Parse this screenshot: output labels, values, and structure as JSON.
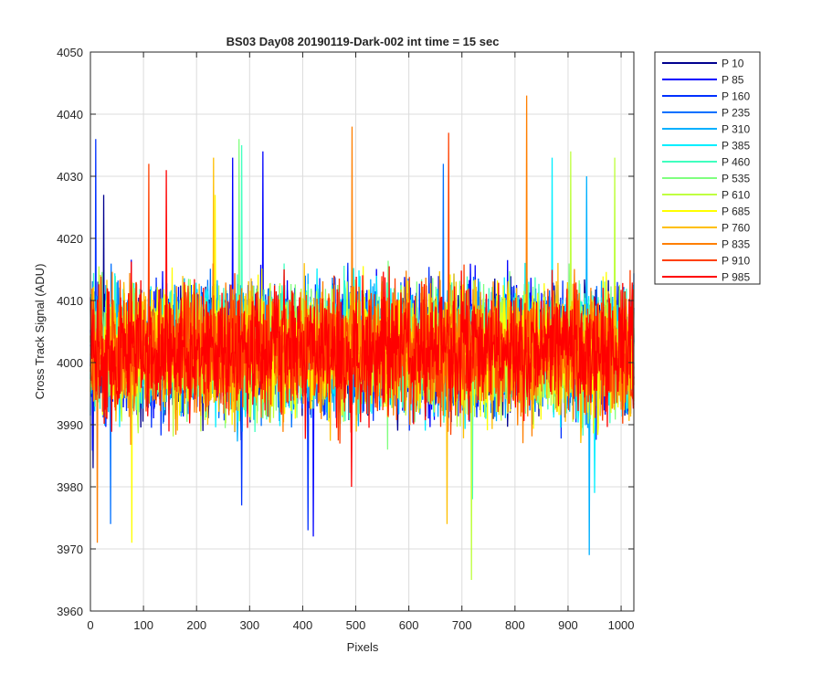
{
  "chart_data": {
    "type": "line",
    "title": "BS03 Day08 20190119-Dark-002 int time = 15 sec",
    "xlabel": "Pixels",
    "ylabel": "Cross Track Signal (ADU)",
    "xlim": [
      0,
      1024
    ],
    "ylim": [
      3960,
      4050
    ],
    "xticks": [
      0,
      100,
      200,
      300,
      400,
      500,
      600,
      700,
      800,
      900,
      1000
    ],
    "yticks": [
      3960,
      3970,
      3980,
      3990,
      4000,
      4010,
      4020,
      4030,
      4040,
      4050
    ],
    "grid": true,
    "legend_position": "outside-top-right",
    "signal_center": 4002,
    "typical_range": [
      3983,
      4022
    ],
    "series": [
      {
        "name": "P 10",
        "color": "#00008f",
        "extremes": [
          [
            5,
            3983
          ],
          [
            25,
            4027
          ]
        ]
      },
      {
        "name": "P 85",
        "color": "#0000ff",
        "extremes": [
          [
            325,
            4034
          ],
          [
            420,
            3972
          ],
          [
            268,
            4033
          ]
        ]
      },
      {
        "name": "P 160",
        "color": "#0030ff",
        "extremes": [
          [
            10,
            4036
          ],
          [
            410,
            3973
          ],
          [
            285,
            3977
          ]
        ]
      },
      {
        "name": "P 235",
        "color": "#0070ff",
        "extremes": [
          [
            38,
            3974
          ],
          [
            665,
            4032
          ]
        ]
      },
      {
        "name": "P 310",
        "color": "#00b0ff",
        "extremes": [
          [
            940,
            3969
          ],
          [
            935,
            4030
          ]
        ]
      },
      {
        "name": "P 385",
        "color": "#00efff",
        "extremes": [
          [
            870,
            4033
          ],
          [
            950,
            3979
          ]
        ]
      },
      {
        "name": "P 460",
        "color": "#40ffbf",
        "extremes": [
          [
            285,
            4035
          ],
          [
            720,
            3978
          ]
        ]
      },
      {
        "name": "P 535",
        "color": "#80ff7f",
        "extremes": [
          [
            280,
            4036
          ],
          [
            560,
            3986
          ]
        ]
      },
      {
        "name": "P 610",
        "color": "#bfff40",
        "extremes": [
          [
            718,
            3965
          ],
          [
            905,
            4034
          ],
          [
            988,
            4033
          ]
        ]
      },
      {
        "name": "P 685",
        "color": "#ffff00",
        "extremes": [
          [
            78,
            3971
          ],
          [
            235,
            4027
          ]
        ]
      },
      {
        "name": "P 760",
        "color": "#ffbf00",
        "extremes": [
          [
            232,
            4033
          ],
          [
            672,
            3974
          ]
        ]
      },
      {
        "name": "P 835",
        "color": "#ff7f00",
        "extremes": [
          [
            822,
            4043
          ],
          [
            493,
            4038
          ],
          [
            13,
            3971
          ]
        ]
      },
      {
        "name": "P 910",
        "color": "#ff4000",
        "extremes": [
          [
            675,
            4037
          ],
          [
            110,
            4032
          ]
        ]
      },
      {
        "name": "P 985",
        "color": "#ff0000",
        "extremes": [
          [
            143,
            4031
          ],
          [
            492,
            3980
          ]
        ]
      }
    ]
  }
}
